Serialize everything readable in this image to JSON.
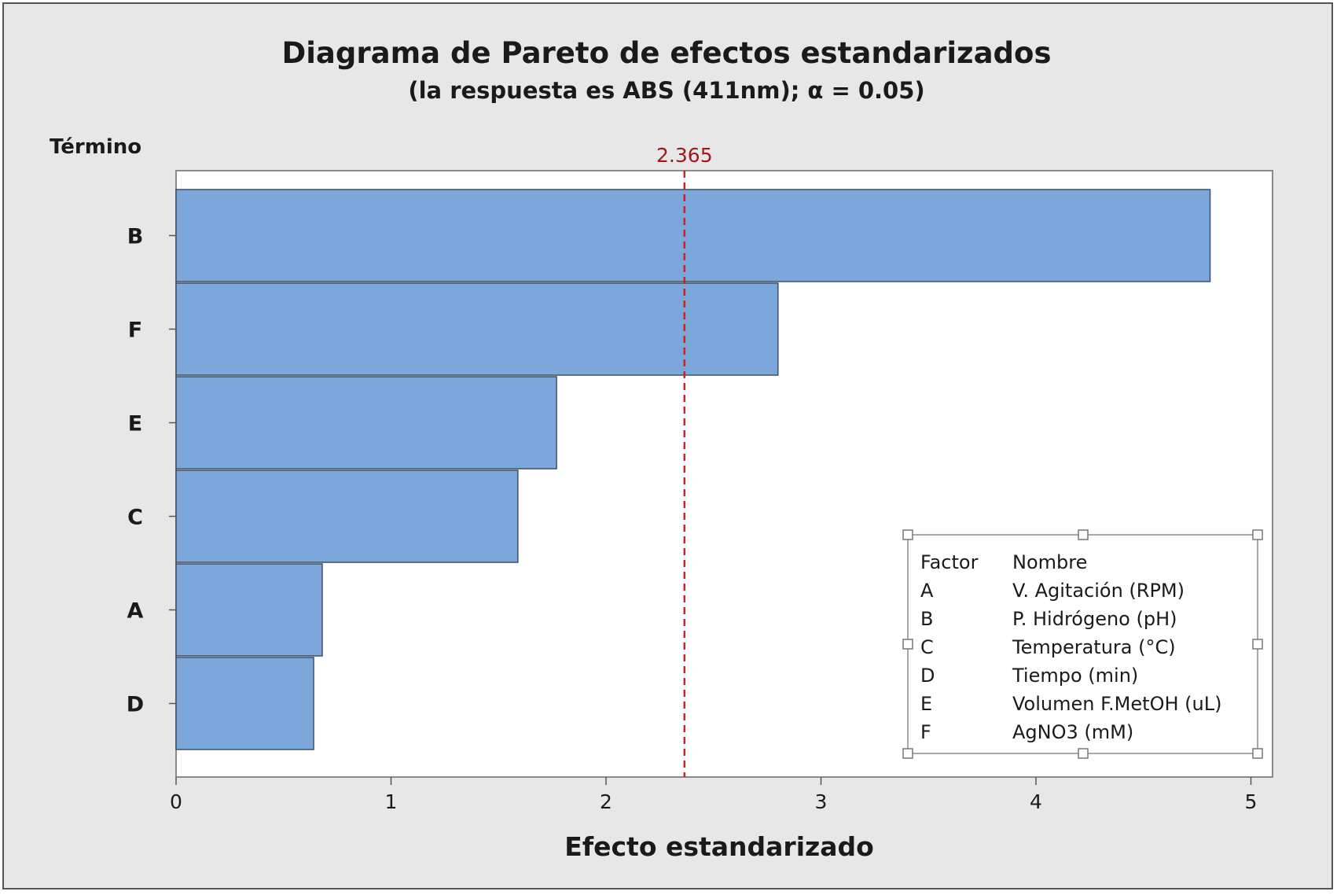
{
  "chart_data": {
    "type": "bar",
    "orientation": "horizontal",
    "title": "Diagrama de Pareto de efectos estandarizados",
    "subtitle": "(la respuesta es ABS (411nm); α = 0.05)",
    "ylabel": "Término",
    "xlabel": "Efecto estandarizado",
    "categories": [
      "B",
      "F",
      "E",
      "C",
      "A",
      "D"
    ],
    "values": [
      4.81,
      2.8,
      1.77,
      1.59,
      0.68,
      0.64
    ],
    "xlim": [
      0,
      5.1
    ],
    "xticks": [
      0,
      1,
      2,
      3,
      4,
      5
    ],
    "reference_line": {
      "value": 2.365,
      "label": "2.365"
    },
    "grid": false,
    "colors": {
      "bar": "#7ba7da",
      "bar_border": "#3f4f66",
      "reference": "#cc2222",
      "reference_label": "#a01818"
    },
    "legend": {
      "placement": "bottom-right",
      "header": {
        "factor": "Factor",
        "name": "Nombre"
      },
      "rows": [
        {
          "factor": "A",
          "name": "V. Agitación (RPM)"
        },
        {
          "factor": "B",
          "name": "P. Hidrógeno (pH)"
        },
        {
          "factor": "C",
          "name": "Temperatura (°C)"
        },
        {
          "factor": "D",
          "name": "Tiempo (min)"
        },
        {
          "factor": "E",
          "name": "Volumen F.MetOH (uL)"
        },
        {
          "factor": "F",
          "name": "AgNO3 (mM)"
        }
      ]
    }
  }
}
